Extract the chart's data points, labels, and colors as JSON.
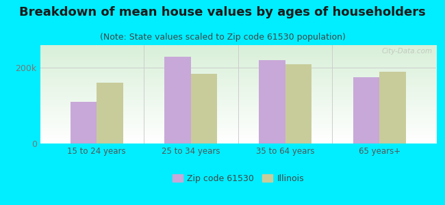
{
  "title": "Breakdown of mean house values by ages of householders",
  "subtitle": "(Note: State values scaled to Zip code 61530 population)",
  "categories": [
    "15 to 24 years",
    "25 to 34 years",
    "35 to 64 years",
    "65 years+"
  ],
  "zip_values": [
    110000,
    230000,
    220000,
    175000
  ],
  "state_values": [
    160000,
    185000,
    210000,
    190000
  ],
  "zip_color": "#c8a8d8",
  "state_color": "#c8cc9a",
  "background_outer": "#00eeff",
  "yticks": [
    0,
    200000
  ],
  "ytick_labels": [
    "0",
    "200k"
  ],
  "legend_zip": "Zip code 61530",
  "legend_state": "Illinois",
  "title_fontsize": 13,
  "subtitle_fontsize": 9,
  "bar_width": 0.28,
  "ylim": [
    0,
    260000
  ],
  "separator_color": "#cccccc"
}
